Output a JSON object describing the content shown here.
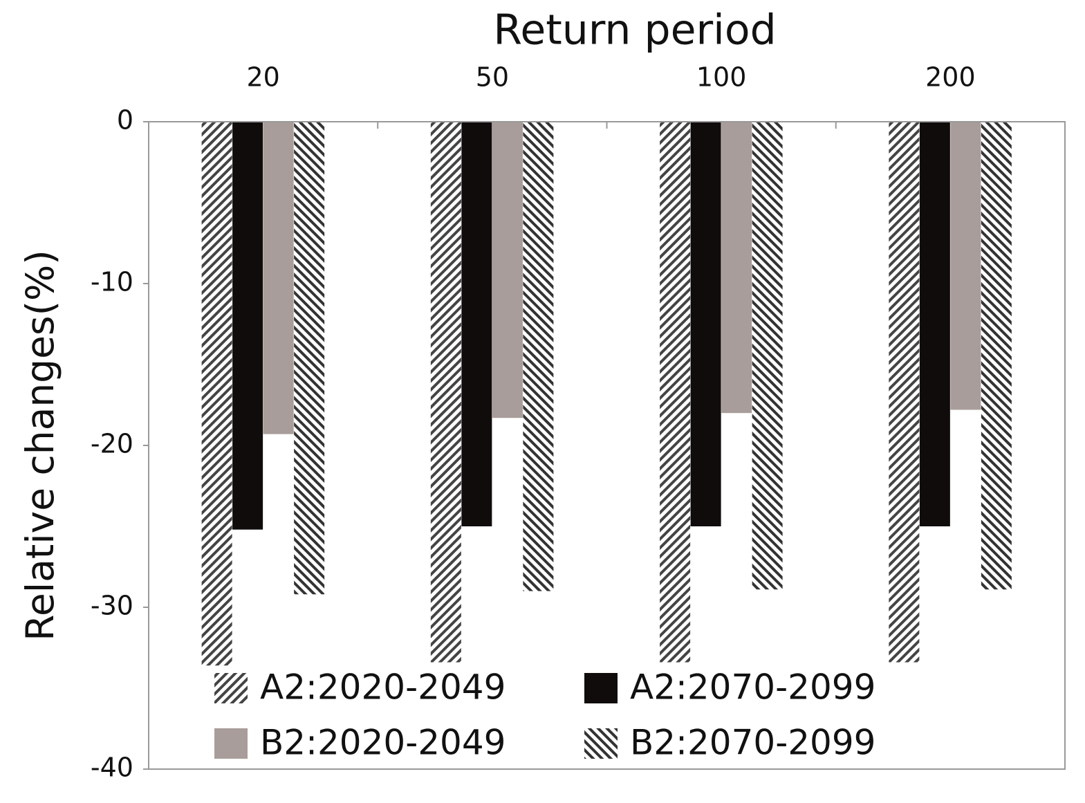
{
  "chart_data": {
    "type": "bar",
    "x_label": "Return period",
    "y_label": "Relative changes(%)",
    "categories": [
      "20",
      "50",
      "100",
      "200"
    ],
    "series": [
      {
        "name": "A2:2020-2049",
        "color": "#444444",
        "hatch": "forward",
        "values": [
          -33.6,
          -33.4,
          -33.4,
          -33.4
        ]
      },
      {
        "name": "A2:2070-2099",
        "color": "#100c0c",
        "values": [
          -25.2,
          -25.0,
          -25.0,
          -25.0
        ]
      },
      {
        "name": "B2:2020-2049",
        "color": "#a89d9a",
        "values": [
          -19.3,
          -18.3,
          -18.0,
          -17.8
        ]
      },
      {
        "name": "B2:2070-2099",
        "color": "#333333",
        "hatch": "backward",
        "values": [
          -29.2,
          -29.0,
          -28.9,
          -28.9
        ]
      }
    ],
    "ylim": [
      -40,
      0
    ],
    "yticks": [
      0,
      -10,
      -20,
      -30,
      -40
    ],
    "legend": "lower center"
  }
}
